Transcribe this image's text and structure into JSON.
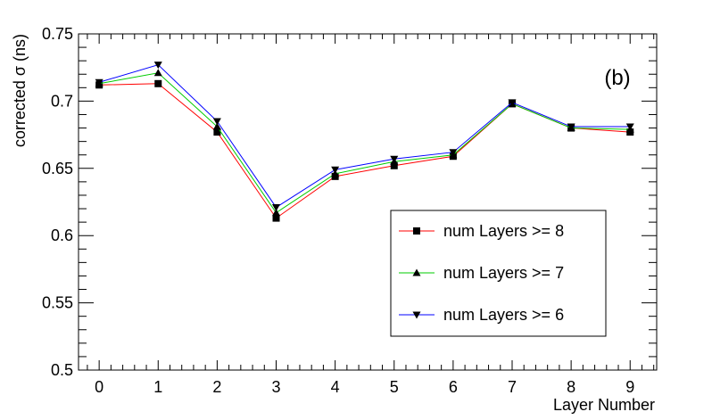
{
  "chart_data": {
    "type": "line",
    "panel_label": "(b)",
    "xlabel": "Layer Number",
    "ylabel": "corrected σ (ns)",
    "xlim": [
      -0.35,
      9.45
    ],
    "ylim": [
      0.5,
      0.75
    ],
    "x": [
      0,
      1,
      2,
      3,
      4,
      5,
      6,
      7,
      8,
      9
    ],
    "x_tick_labels": [
      "0",
      "1",
      "2",
      "3",
      "4",
      "5",
      "6",
      "7",
      "8",
      "9"
    ],
    "y_ticks": [
      0.5,
      0.55,
      0.6,
      0.65,
      0.7,
      0.75
    ],
    "y_tick_labels": [
      "0.5",
      "0.55",
      "0.6",
      "0.65",
      "0.7",
      "0.75"
    ],
    "grid": false,
    "legend_position": "right",
    "series": [
      {
        "name": "num Layers >= 8",
        "color": "#ff0000",
        "marker": "square",
        "values": [
          0.712,
          0.713,
          0.677,
          0.613,
          0.644,
          0.652,
          0.659,
          0.698,
          0.68,
          0.677
        ]
      },
      {
        "name": "num Layers >= 7",
        "color": "#00cc00",
        "marker": "triangle-up",
        "values": [
          0.713,
          0.721,
          0.681,
          0.617,
          0.646,
          0.655,
          0.66,
          0.698,
          0.68,
          0.679
        ]
      },
      {
        "name": "num Layers >= 6",
        "color": "#0000ff",
        "marker": "triangle-down",
        "values": [
          0.714,
          0.727,
          0.685,
          0.621,
          0.649,
          0.657,
          0.662,
          0.699,
          0.681,
          0.681
        ]
      }
    ]
  }
}
